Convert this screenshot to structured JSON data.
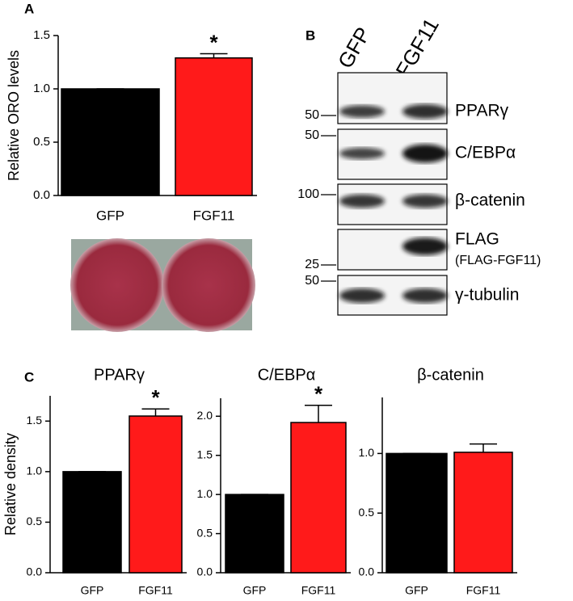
{
  "chart_data": [
    {
      "type": "bar",
      "panel_label": "A",
      "ylabel": "Relative ORO levels",
      "categories": [
        "GFP",
        "FGF11"
      ],
      "values": [
        1.0,
        1.29
      ],
      "errors": [
        0,
        0.04
      ],
      "colors": [
        "#000000",
        "#ff1a1a"
      ],
      "annotation": "*",
      "ylim": [
        0,
        1.5
      ],
      "yticks": [
        {
          "value": 0,
          "label": "0.0"
        },
        {
          "value": 0.5,
          "label": "0.5"
        },
        {
          "value": 1,
          "label": "1.0"
        },
        {
          "value": 1.5,
          "label": "1.5"
        }
      ]
    },
    {
      "type": "bar",
      "panel_label": "C",
      "title": "PPARγ",
      "ylabel": "Relative density",
      "categories": [
        "GFP",
        "FGF11"
      ],
      "values": [
        1.0,
        1.55
      ],
      "errors": [
        0,
        0.07
      ],
      "colors": [
        "#000000",
        "#ff1a1a"
      ],
      "annotation": "*",
      "ylim": [
        0,
        1.75
      ],
      "yticks": [
        {
          "value": 0,
          "label": "0.0"
        },
        {
          "value": 0.5,
          "label": "0.5"
        },
        {
          "value": 1,
          "label": "1.0"
        },
        {
          "value": 1.5,
          "label": "1.5"
        }
      ]
    },
    {
      "type": "bar",
      "title": "C/EBPα",
      "categories": [
        "GFP",
        "FGF11"
      ],
      "values": [
        1.0,
        1.92
      ],
      "errors": [
        0,
        0.22
      ],
      "colors": [
        "#000000",
        "#ff1a1a"
      ],
      "annotation": "*",
      "ylim": [
        0,
        2.23
      ],
      "yticks": [
        {
          "value": 0,
          "label": "0.0"
        },
        {
          "value": 0.5,
          "label": "0.5"
        },
        {
          "value": 1,
          "label": "1.0"
        },
        {
          "value": 1.5,
          "label": "1.5"
        },
        {
          "value": 2,
          "label": "2.0"
        }
      ]
    },
    {
      "type": "bar",
      "title": "β-catenin",
      "categories": [
        "GFP",
        "FGF11"
      ],
      "values": [
        1.0,
        1.01
      ],
      "errors": [
        0,
        0.07
      ],
      "colors": [
        "#000000",
        "#ff1a1a"
      ],
      "ylim": [
        0,
        1.47
      ],
      "yticks": [
        {
          "value": 0,
          "label": "0.0"
        },
        {
          "value": 0.5,
          "label": "0.5"
        },
        {
          "value": 1,
          "label": "1.0"
        }
      ]
    }
  ],
  "blot": {
    "panel_label": "B",
    "lanes": [
      "GFP",
      "FGF11"
    ],
    "rows": [
      {
        "label": "PPARγ"
      },
      {
        "label": "C/EBPα"
      },
      {
        "label": "β-catenin"
      },
      {
        "label": "FLAG",
        "sublabel": "(FLAG-FGF11)"
      },
      {
        "label": "γ-tubulin"
      }
    ],
    "markers": [
      "50",
      "50",
      "100",
      "25",
      "50"
    ]
  }
}
